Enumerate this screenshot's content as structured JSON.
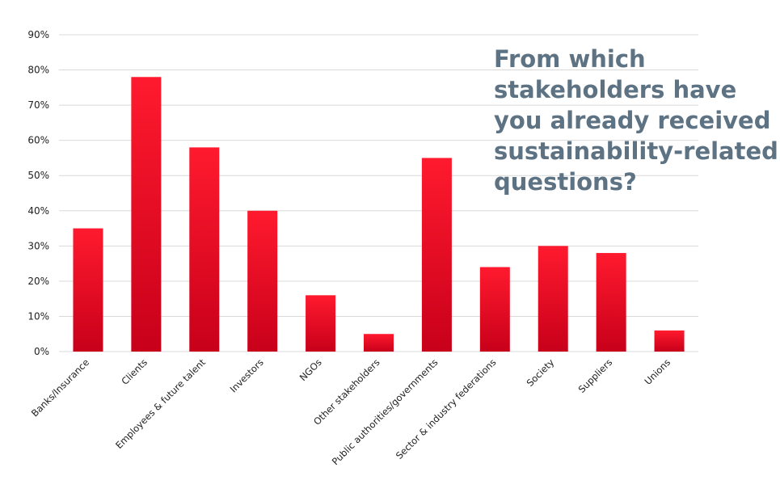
{
  "chart_data": {
    "type": "bar",
    "title_lines": [
      "From which",
      "stakeholders have",
      "you already received",
      "sustainability-related",
      "questions?"
    ],
    "categories": [
      "Banks/Insurance",
      "Clients",
      "Employees & future talent",
      "Investors",
      "NGOs",
      "Other stakeholders",
      "Public authorities/governments",
      "Sector & industry federations",
      "Society",
      "Suppliers",
      "Unions"
    ],
    "values": [
      35,
      78,
      58,
      40,
      16,
      5,
      55,
      24,
      30,
      28,
      6
    ],
    "ylim": [
      0,
      90
    ],
    "yticks": [
      "0%",
      "10%",
      "20%",
      "30%",
      "40%",
      "50%",
      "60%",
      "70%",
      "80%",
      "90%"
    ],
    "grid": true,
    "legend": "none",
    "bar_color_top": "#ff1a2e",
    "bar_color_bottom": "#c8001a",
    "grid_color": "#d9d9d9",
    "title_color": "#5d7282"
  }
}
